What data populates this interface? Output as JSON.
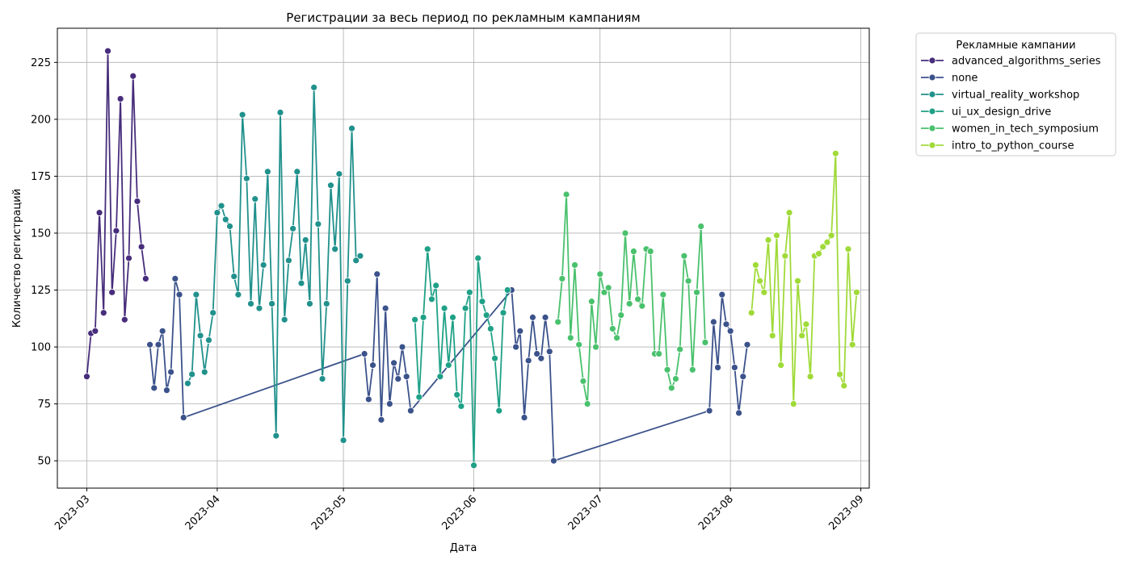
{
  "chart_data": {
    "type": "line",
    "title": "Регистрации за весь период по рекламным кампаниям",
    "xlabel": "Дата",
    "ylabel": "Количество регистраций",
    "xlim": [
      "2023-02-22",
      "2023-09-03"
    ],
    "ylim": [
      38,
      240
    ],
    "x_ticks": [
      "2023-03-01",
      "2023-04-01",
      "2023-05-01",
      "2023-06-01",
      "2023-07-01",
      "2023-08-01",
      "2023-09-01"
    ],
    "x_tick_labels": [
      "2023-03",
      "2023-04",
      "2023-05",
      "2023-06",
      "2023-07",
      "2023-08",
      "2023-09"
    ],
    "y_ticks": [
      50,
      75,
      100,
      125,
      150,
      175,
      200,
      225
    ],
    "y_tick_labels": [
      "50",
      "75",
      "100",
      "125",
      "150",
      "175",
      "200",
      "225"
    ],
    "grid": true,
    "legend": {
      "title": "Рекламные кампании",
      "placement": "outside-top-right"
    },
    "series": [
      {
        "name": "advanced_algorithms_series",
        "color": "#472d7b",
        "x": [
          "2023-03-01",
          "2023-03-02",
          "2023-03-03",
          "2023-03-04",
          "2023-03-05",
          "2023-03-06",
          "2023-03-07",
          "2023-03-08",
          "2023-03-09",
          "2023-03-10",
          "2023-03-11",
          "2023-03-12",
          "2023-03-13",
          "2023-03-14",
          "2023-03-15"
        ],
        "y": [
          87,
          106,
          107,
          159,
          115,
          230,
          124,
          151,
          209,
          112,
          139,
          219,
          164,
          144,
          130
        ]
      },
      {
        "name": "none",
        "color": "#3b528b",
        "x": [
          "2023-03-16",
          "2023-03-17",
          "2023-03-18",
          "2023-03-19",
          "2023-03-20",
          "2023-03-21",
          "2023-03-22",
          "2023-03-23",
          "2023-03-24",
          "2023-05-06",
          "2023-05-07",
          "2023-05-08",
          "2023-05-09",
          "2023-05-10",
          "2023-05-11",
          "2023-05-12",
          "2023-05-13",
          "2023-05-14",
          "2023-05-15",
          "2023-05-16",
          "2023-05-17",
          "2023-06-10",
          "2023-06-11",
          "2023-06-12",
          "2023-06-13",
          "2023-06-14",
          "2023-06-15",
          "2023-06-16",
          "2023-06-17",
          "2023-06-18",
          "2023-06-19",
          "2023-06-20",
          "2023-07-27",
          "2023-07-28",
          "2023-07-29",
          "2023-07-30",
          "2023-07-31",
          "2023-08-01",
          "2023-08-02",
          "2023-08-03",
          "2023-08-04",
          "2023-08-05"
        ],
        "y": [
          101,
          82,
          101,
          107,
          81,
          89,
          130,
          123,
          69,
          97,
          77,
          92,
          132,
          68,
          117,
          75,
          93,
          86,
          100,
          87,
          72,
          125,
          100,
          107,
          69,
          94,
          113,
          97,
          95,
          113,
          98,
          50,
          72,
          111,
          91,
          123,
          110,
          107,
          91,
          71,
          87,
          101
        ]
      },
      {
        "name": "virtual_reality_workshop",
        "color": "#21918c",
        "x": [
          "2023-03-25",
          "2023-03-26",
          "2023-03-27",
          "2023-03-28",
          "2023-03-29",
          "2023-03-30",
          "2023-03-31",
          "2023-04-01",
          "2023-04-02",
          "2023-04-03",
          "2023-04-04",
          "2023-04-05",
          "2023-04-06",
          "2023-04-07",
          "2023-04-08",
          "2023-04-09",
          "2023-04-10",
          "2023-04-11",
          "2023-04-12",
          "2023-04-13",
          "2023-04-14",
          "2023-04-15",
          "2023-04-16",
          "2023-04-17",
          "2023-04-18",
          "2023-04-19",
          "2023-04-20",
          "2023-04-21",
          "2023-04-22",
          "2023-04-23",
          "2023-04-24",
          "2023-04-25",
          "2023-04-26",
          "2023-04-27",
          "2023-04-28",
          "2023-04-29",
          "2023-04-30",
          "2023-05-01",
          "2023-05-02",
          "2023-05-03",
          "2023-05-04",
          "2023-05-05"
        ],
        "y": [
          84,
          88,
          123,
          105,
          89,
          103,
          115,
          159,
          162,
          156,
          153,
          131,
          123,
          202,
          174,
          119,
          165,
          117,
          136,
          177,
          119,
          61,
          203,
          112,
          138,
          152,
          177,
          128,
          147,
          119,
          214,
          154,
          86,
          119,
          171,
          143,
          176,
          59,
          129,
          196,
          138,
          140
        ]
      },
      {
        "name": "ui_ux_design_drive",
        "color": "#1fa187",
        "x": [
          "2023-05-18",
          "2023-05-19",
          "2023-05-20",
          "2023-05-21",
          "2023-05-22",
          "2023-05-23",
          "2023-05-24",
          "2023-05-25",
          "2023-05-26",
          "2023-05-27",
          "2023-05-28",
          "2023-05-29",
          "2023-05-30",
          "2023-05-31",
          "2023-06-01",
          "2023-06-02",
          "2023-06-03",
          "2023-06-04",
          "2023-06-05",
          "2023-06-06",
          "2023-06-07",
          "2023-06-08",
          "2023-06-09"
        ],
        "y": [
          112,
          78,
          113,
          143,
          121,
          127,
          87,
          117,
          92,
          113,
          79,
          74,
          117,
          124,
          48,
          139,
          120,
          114,
          108,
          95,
          72,
          115,
          125
        ]
      },
      {
        "name": "women_in_tech_symposium",
        "color": "#4ac16d",
        "x": [
          "2023-06-21",
          "2023-06-22",
          "2023-06-23",
          "2023-06-24",
          "2023-06-25",
          "2023-06-26",
          "2023-06-27",
          "2023-06-28",
          "2023-06-29",
          "2023-06-30",
          "2023-07-01",
          "2023-07-02",
          "2023-07-03",
          "2023-07-04",
          "2023-07-05",
          "2023-07-06",
          "2023-07-07",
          "2023-07-08",
          "2023-07-09",
          "2023-07-10",
          "2023-07-11",
          "2023-07-12",
          "2023-07-13",
          "2023-07-14",
          "2023-07-15",
          "2023-07-16",
          "2023-07-17",
          "2023-07-18",
          "2023-07-19",
          "2023-07-20",
          "2023-07-21",
          "2023-07-22",
          "2023-07-23",
          "2023-07-24",
          "2023-07-25",
          "2023-07-26"
        ],
        "y": [
          111,
          130,
          167,
          104,
          136,
          101,
          85,
          75,
          120,
          100,
          132,
          124,
          126,
          108,
          104,
          114,
          150,
          119,
          142,
          121,
          118,
          143,
          142,
          97,
          97,
          123,
          90,
          82,
          86,
          99,
          140,
          129,
          90,
          124,
          153,
          102
        ]
      },
      {
        "name": "intro_to_python_course",
        "color": "#a0da39",
        "x": [
          "2023-08-06",
          "2023-08-07",
          "2023-08-08",
          "2023-08-09",
          "2023-08-10",
          "2023-08-11",
          "2023-08-12",
          "2023-08-13",
          "2023-08-14",
          "2023-08-15",
          "2023-08-16",
          "2023-08-17",
          "2023-08-18",
          "2023-08-19",
          "2023-08-20",
          "2023-08-21",
          "2023-08-22",
          "2023-08-23",
          "2023-08-24",
          "2023-08-25",
          "2023-08-26",
          "2023-08-27",
          "2023-08-28",
          "2023-08-29",
          "2023-08-30",
          "2023-08-31"
        ],
        "y": [
          115,
          136,
          129,
          124,
          147,
          105,
          149,
          92,
          140,
          159,
          75,
          129,
          105,
          110,
          87,
          140,
          141,
          144,
          146,
          149,
          185,
          88,
          83,
          143,
          101,
          124
        ]
      }
    ]
  }
}
